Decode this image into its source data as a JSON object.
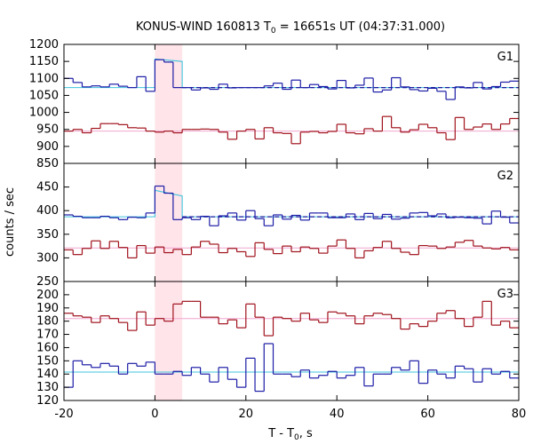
{
  "title": "KONUS-WIND 160813 T",
  "title_sub": "0",
  "title_rest": " = 16651s UT (04:37:31.000)",
  "xlabel_main": "T - T",
  "xlabel_sub": "0",
  "xlabel_rest": ", s",
  "ylabel": "counts / sec",
  "chart_data": {
    "type": "line",
    "xlim": [
      -20,
      80
    ],
    "xticks": [
      -20,
      0,
      20,
      40,
      60,
      80
    ],
    "highlight": {
      "x0": 0,
      "x1": 6,
      "color": "#ffe4ea"
    },
    "bin_start": -20,
    "bin_width": 2,
    "colors": {
      "blue": "#1c1ca6",
      "red": "#a0121c",
      "cyan": "#3fc4dd",
      "pink": "#f0a6cf",
      "fit_dash": "#1a1a9e",
      "axis": "#000000"
    },
    "panels": [
      {
        "label": "G1",
        "ylim": [
          850,
          1200
        ],
        "yticks": [
          850,
          900,
          950,
          1000,
          1050,
          1100,
          1150,
          1200
        ],
        "series": [
          {
            "name": "G1 net",
            "color": "blue",
            "values": [
              1100,
              1088,
              1075,
              1078,
              1075,
              1083,
              1077,
              1073,
              1105,
              1062,
              1155,
              1148,
              1073,
              1073,
              1066,
              1072,
              1068,
              1083,
              1072,
              1073,
              1073,
              1073,
              1078,
              1086,
              1068,
              1095,
              1073,
              1082,
              1076,
              1069,
              1094,
              1072,
              1080,
              1101,
              1060,
              1066,
              1102,
              1075,
              1067,
              1063,
              1071,
              1062,
              1038,
              1075,
              1072,
              1088,
              1069,
              1076,
              1089,
              1092
            ]
          },
          {
            "name": "G1 bkg",
            "color": "red",
            "values": [
              945,
              950,
              940,
              953,
              967,
              967,
              964,
              955,
              954,
              945,
              942,
              945,
              940,
              950,
              950,
              951,
              950,
              942,
              921,
              945,
              950,
              922,
              955,
              940,
              938,
              908,
              942,
              944,
              940,
              944,
              965,
              940,
              937,
              952,
              945,
              988,
              955,
              942,
              949,
              965,
              955,
              940,
              920,
              985,
              950,
              957,
              966,
              950,
              966,
              982
            ]
          }
        ],
        "fit_cyan": {
          "base": 1073,
          "pulse": 1157,
          "pulse_end": 1150
        },
        "fit_dash": 1073,
        "pink_level": 945
      },
      {
        "label": "G2",
        "ylim": [
          250,
          500
        ],
        "yticks": [
          250,
          300,
          350,
          400,
          450
        ],
        "series": [
          {
            "name": "G2 net",
            "color": "blue",
            "values": [
              391,
              388,
              385,
              385,
              388,
              385,
              381,
              386,
              385,
              395,
              452,
              437,
              381,
              385,
              381,
              388,
              368,
              389,
              395,
              380,
              400,
              383,
              368,
              391,
              382,
              390,
              380,
              395,
              395,
              385,
              385,
              393,
              381,
              394,
              383,
              392,
              382,
              384,
              395,
              396,
              389,
              393,
              385,
              386,
              385,
              384,
              372,
              399,
              386,
              374
            ]
          },
          {
            "name": "G2 bkg",
            "color": "red",
            "values": [
              317,
              307,
              320,
              336,
              320,
              335,
              322,
              300,
              326,
              310,
              323,
              311,
              318,
              307,
              323,
              335,
              329,
              311,
              320,
              313,
              303,
              332,
              318,
              309,
              325,
              313,
              323,
              320,
              310,
              325,
              338,
              320,
              300,
              315,
              322,
              335,
              320,
              312,
              307,
              326,
              325,
              320,
              323,
              333,
              337,
              325,
              321,
              319,
              322,
              317
            ]
          }
        ],
        "fit_cyan": {
          "base": 387,
          "pulse": 443,
          "pulse_end": 431
        },
        "fit_dash": 387,
        "pink_level": 321
      },
      {
        "label": "G3",
        "ylim": [
          120,
          210
        ],
        "yticks": [
          120,
          130,
          140,
          150,
          160,
          170,
          180,
          190,
          200
        ],
        "series": [
          {
            "name": "G3 bkg",
            "color": "red",
            "values": [
              186,
              184,
              183,
              179,
              184,
              182,
              179,
              173,
              187,
              177,
              182,
              180,
              193,
              195,
              195,
              183,
              183,
              178,
              181,
              175,
              193,
              183,
              169,
              183,
              182,
              180,
              186,
              181,
              179,
              187,
              186,
              184,
              178,
              184,
              186,
              185,
              182,
              174,
              178,
              176,
              180,
              186,
              188,
              182,
              176,
              183,
              195,
              177,
              180,
              175
            ]
          },
          {
            "name": "G3 net",
            "color": "blue",
            "values": [
              130,
              150,
              147,
              145,
              148,
              146,
              140,
              148,
              146,
              149,
              140,
              140,
              142,
              139,
              145,
              140,
              134,
              145,
              136,
              130,
              152,
              127,
              163,
              140,
              140,
              138,
              143,
              137,
              139,
              142,
              137,
              139,
              145,
              131,
              140,
              140,
              145,
              143,
              150,
              133,
              143,
              140,
              137,
              146,
              144,
              134,
              144,
              140,
              142,
              137
            ]
          }
        ],
        "fit_cyan": {
          "base": 141.5,
          "pulse": 141.5,
          "pulse_end": 141.5
        },
        "fit_dash": null,
        "pink_level": 182
      }
    ]
  }
}
